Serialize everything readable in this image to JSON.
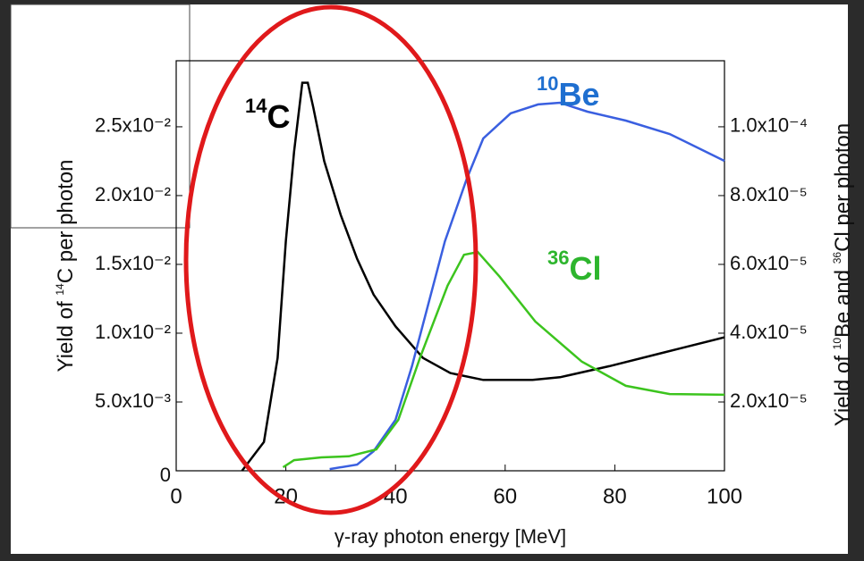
{
  "chart_data": {
    "type": "line",
    "x_label": "γ-ray photon energy [MeV]",
    "y_label": [
      {
        "text": "Yield of "
      },
      {
        "sup": "14"
      },
      {
        "text": "C per photon"
      }
    ],
    "y2_label": [
      {
        "text": "Yield of "
      },
      {
        "sup": "10"
      },
      {
        "text": "Be and "
      },
      {
        "sup": "36"
      },
      {
        "text": "Cl per photon"
      }
    ],
    "xlim": [
      0,
      100
    ],
    "xticks": [
      0,
      20,
      40,
      60,
      80,
      100
    ],
    "ylim": [
      0,
      0.0298
    ],
    "yticks": [
      0,
      {
        "value": 0.005,
        "label": "5.0x10⁻³"
      },
      {
        "value": 0.01,
        "label": "1.0x10⁻²"
      },
      {
        "value": 0.015,
        "label": "1.5x10⁻²"
      },
      {
        "value": 0.02,
        "label": "2.0x10⁻²"
      },
      {
        "value": 0.025,
        "label": "2.5x10⁻²"
      }
    ],
    "y2lim": [
      0,
      0.0001192
    ],
    "y2ticks": [
      {
        "value": 2e-05,
        "label": "2.0x10⁻⁵"
      },
      {
        "value": 4e-05,
        "label": "4.0x10⁻⁵"
      },
      {
        "value": 6e-05,
        "label": "6.0x10⁻⁵"
      },
      {
        "value": 8e-05,
        "label": "8.0x10⁻⁵"
      },
      {
        "value": 0.0001,
        "label": "1.0x10⁻⁴"
      }
    ],
    "series": [
      {
        "color": "#000000",
        "axis": "y",
        "x": [
          12,
          16,
          18.5,
          20,
          21.5,
          23,
          24,
          25,
          27,
          30,
          33,
          36,
          40,
          45,
          50,
          56,
          65,
          70,
          79,
          89,
          100
        ],
        "values": [
          0,
          0.0021,
          0.0082,
          0.0167,
          0.0232,
          0.0282,
          0.0282,
          0.0264,
          0.0225,
          0.0186,
          0.0154,
          0.0128,
          0.0105,
          0.0082,
          0.0071,
          0.0066,
          0.0066,
          0.0068,
          0.0076,
          0.0086,
          0.0097
        ]
      },
      {
        "color": "#3a5fe0",
        "axis": "y2",
        "x": [
          28,
          33,
          36,
          40,
          43,
          46,
          49,
          53,
          56,
          61,
          66,
          70,
          75,
          82,
          90,
          100
        ],
        "values": [
          5e-07,
          1.8e-06,
          5.7e-06,
          1.48e-05,
          3.04e-05,
          4.86e-05,
          6.67e-05,
          8.49e-05,
          9.66e-05,
          0.0001039,
          0.0001065,
          0.000107,
          0.0001044,
          0.0001018,
          9.79e-05,
          9.01e-05
        ]
      },
      {
        "color": "#3cc41e",
        "axis": "y2",
        "x": [
          19.5,
          21.5,
          26.5,
          31.5,
          36.5,
          40.5,
          44.5,
          49.5,
          52.5,
          55,
          59,
          65.5,
          74,
          82,
          90,
          100
        ],
        "values": [
          1e-06,
          3.1e-06,
          3.9e-06,
          4.2e-06,
          6.2e-06,
          1.48e-05,
          3.3e-05,
          5.38e-05,
          6.28e-05,
          6.36e-05,
          5.64e-05,
          4.34e-05,
          3.17e-05,
          2.47e-05,
          2.23e-05,
          2.21e-05
        ]
      }
    ],
    "annotations": [
      {
        "sup": "14",
        "text": "C",
        "color": "#000000"
      },
      {
        "sup": "10",
        "text": "Be",
        "color": "#1f6fd0"
      },
      {
        "sup": "36",
        "text": "Cl",
        "color": "#2db52d"
      }
    ]
  }
}
